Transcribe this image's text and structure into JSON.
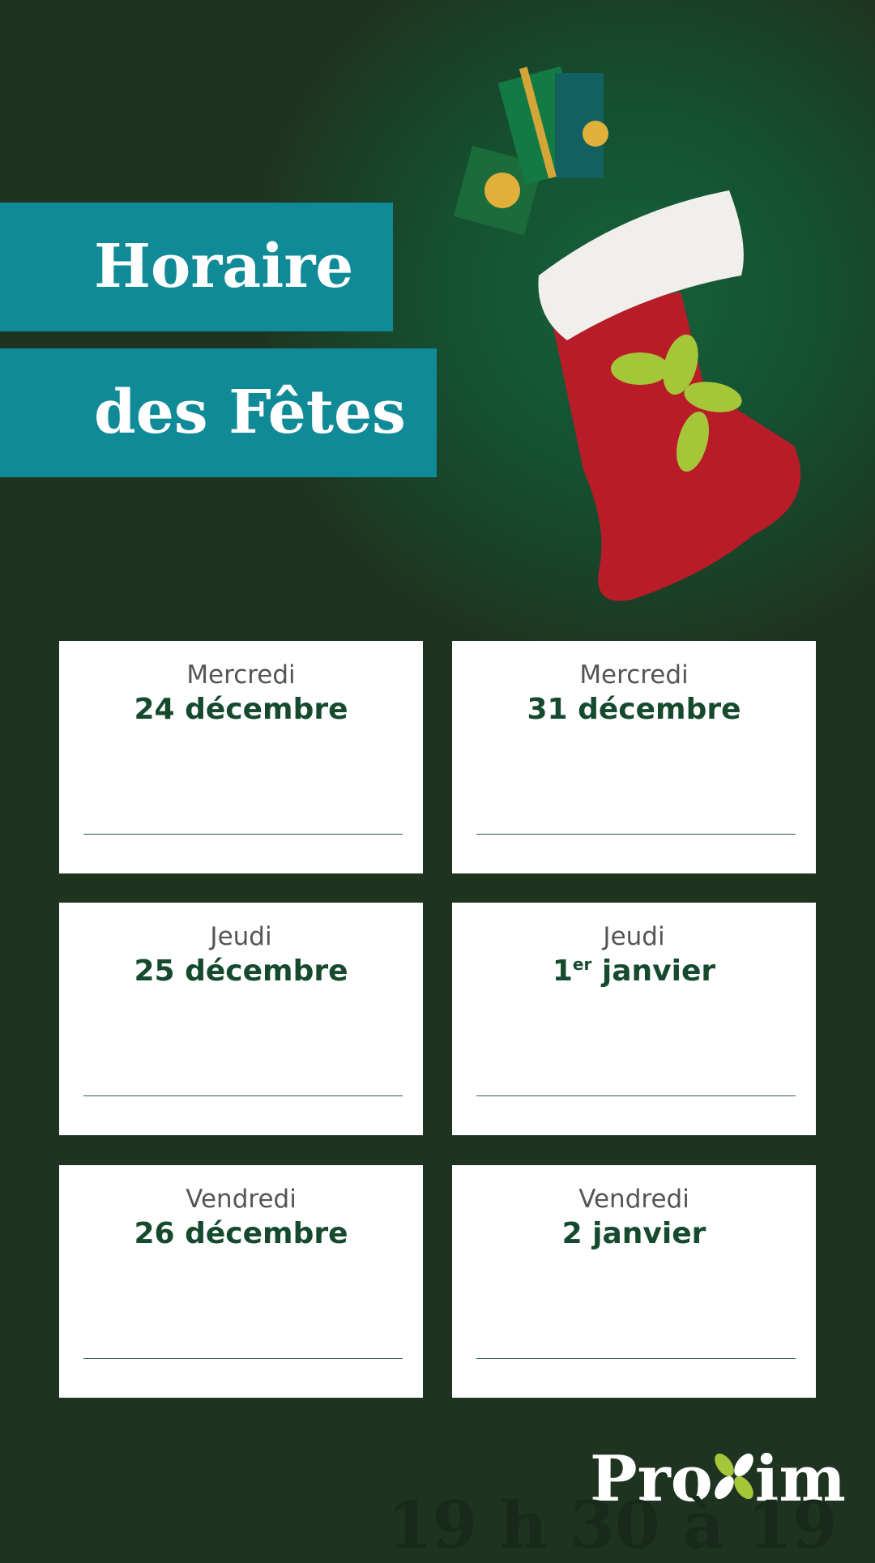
{
  "header": {
    "title_line1": "Horaire",
    "title_line2": "des Fêtes"
  },
  "cards": [
    {
      "day": "Mercredi",
      "date": "24 décembre"
    },
    {
      "day": "Mercredi",
      "date": "31 décembre"
    },
    {
      "day": "Jeudi",
      "date": "25 décembre"
    },
    {
      "day": "Jeudi",
      "date": "1",
      "sup": "er",
      "date_after": "janvier"
    },
    {
      "day": "Vendredi",
      "date": "26 décembre"
    },
    {
      "day": "Vendredi",
      "date": "2 janvier"
    }
  ],
  "logo": {
    "part1": "Pro",
    "part2": "im"
  },
  "footer": {
    "hours": "19 h 30 à 19"
  }
}
